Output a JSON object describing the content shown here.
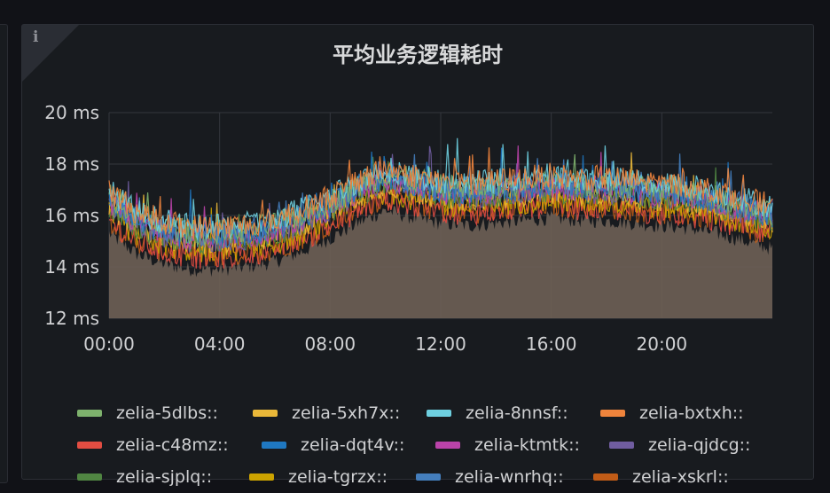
{
  "panel": {
    "title": "平均业务逻辑耗时",
    "info_icon": "info-icon"
  },
  "colors": {
    "background": "#111217",
    "panel": "#181b1f",
    "grid": "#3a3d45",
    "axis_text": "#d0d1d3",
    "area_fill": "#6e6155"
  },
  "chart_data": {
    "type": "line",
    "title": "平均业务逻辑耗时",
    "xlabel": "",
    "ylabel": "",
    "x_ticks": [
      "00:00",
      "04:00",
      "08:00",
      "12:00",
      "16:00",
      "20:00"
    ],
    "x_range_hours": [
      0,
      24
    ],
    "y_ticks": [
      "12 ms",
      "14 ms",
      "16 ms",
      "18 ms",
      "20 ms"
    ],
    "ylim": [
      12,
      20
    ],
    "grid": true,
    "legend_position": "bottom",
    "baseline_profile": {
      "hours": [
        0,
        1,
        2,
        3,
        4,
        5,
        6,
        7,
        8,
        9,
        10,
        11,
        12,
        13,
        14,
        15,
        16,
        17,
        18,
        19,
        20,
        21,
        22,
        23,
        24
      ],
      "ms": [
        16.4,
        15.6,
        15.2,
        15.0,
        15.0,
        15.1,
        15.3,
        15.7,
        16.2,
        16.8,
        17.3,
        17.0,
        16.8,
        16.7,
        16.8,
        16.9,
        17.0,
        16.9,
        16.9,
        16.8,
        16.7,
        16.6,
        16.4,
        16.1,
        15.8
      ]
    },
    "series": [
      {
        "name": "zelia-5dlbs::",
        "color": "#7eb26d",
        "offset": 0.35
      },
      {
        "name": "zelia-5xh7x::",
        "color": "#eab839",
        "offset": -0.05
      },
      {
        "name": "zelia-8nnsf::",
        "color": "#6ed0e0",
        "offset": 0.55
      },
      {
        "name": "zelia-bxtxh::",
        "color": "#ef843c",
        "offset": 0.55
      },
      {
        "name": "zelia-c48mz::",
        "color": "#e24d42",
        "offset": -0.6
      },
      {
        "name": "zelia-dqt4v::",
        "color": "#1f78c1",
        "offset": 0.2
      },
      {
        "name": "zelia-ktmtk::",
        "color": "#ba43a9",
        "offset": 0.15
      },
      {
        "name": "zelia-qjdcg::",
        "color": "#705da0",
        "offset": 0.05
      },
      {
        "name": "zelia-sjplq::",
        "color": "#508642",
        "offset": 0.0
      },
      {
        "name": "zelia-tgrzx::",
        "color": "#cca300",
        "offset": -0.35
      },
      {
        "name": "zelia-wnrhq::",
        "color": "#447ebc",
        "offset": 0.3
      },
      {
        "name": "zelia-xskrl::",
        "color": "#c15c17",
        "offset": -0.55
      }
    ]
  }
}
